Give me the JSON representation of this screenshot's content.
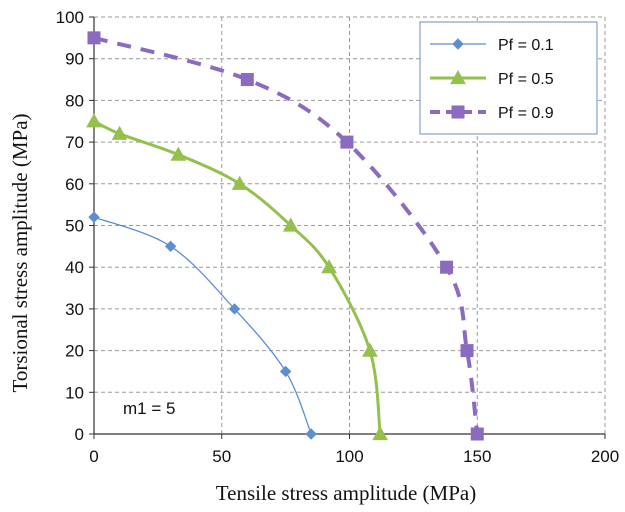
{
  "chart_data": {
    "type": "line",
    "xlabel": "Tensile stress amplitude (MPa)",
    "ylabel": "Torsional stress amplitude  (MPa)",
    "xlim": [
      0,
      200
    ],
    "ylim": [
      0,
      100
    ],
    "xticks": [
      0,
      50,
      100,
      150,
      200
    ],
    "yticks": [
      0,
      10,
      20,
      30,
      40,
      50,
      60,
      70,
      80,
      90,
      100
    ],
    "grid": true,
    "legend_position": "top-right",
    "annotation": "m1 = 5",
    "series": [
      {
        "name": "Pf = 0.1",
        "color": "#5b8fd0",
        "marker": "diamond",
        "line": "solid-thin",
        "points": [
          [
            0,
            52
          ],
          [
            30,
            45
          ],
          [
            55,
            30
          ],
          [
            75,
            15
          ],
          [
            85,
            0
          ]
        ]
      },
      {
        "name": "Pf = 0.5",
        "color": "#94c04c",
        "marker": "triangle",
        "line": "solid-thick",
        "points": [
          [
            0,
            75
          ],
          [
            10,
            72
          ],
          [
            33,
            67
          ],
          [
            57,
            60
          ],
          [
            77,
            50
          ],
          [
            92,
            40
          ],
          [
            108,
            20
          ],
          [
            112,
            0
          ]
        ]
      },
      {
        "name": "Pf = 0.9",
        "color": "#8a6bbf",
        "marker": "square",
        "line": "dashed-thick",
        "points": [
          [
            0,
            95
          ],
          [
            60,
            85
          ],
          [
            99,
            70
          ],
          [
            138,
            40
          ],
          [
            146,
            20
          ],
          [
            150,
            0
          ]
        ]
      }
    ]
  }
}
